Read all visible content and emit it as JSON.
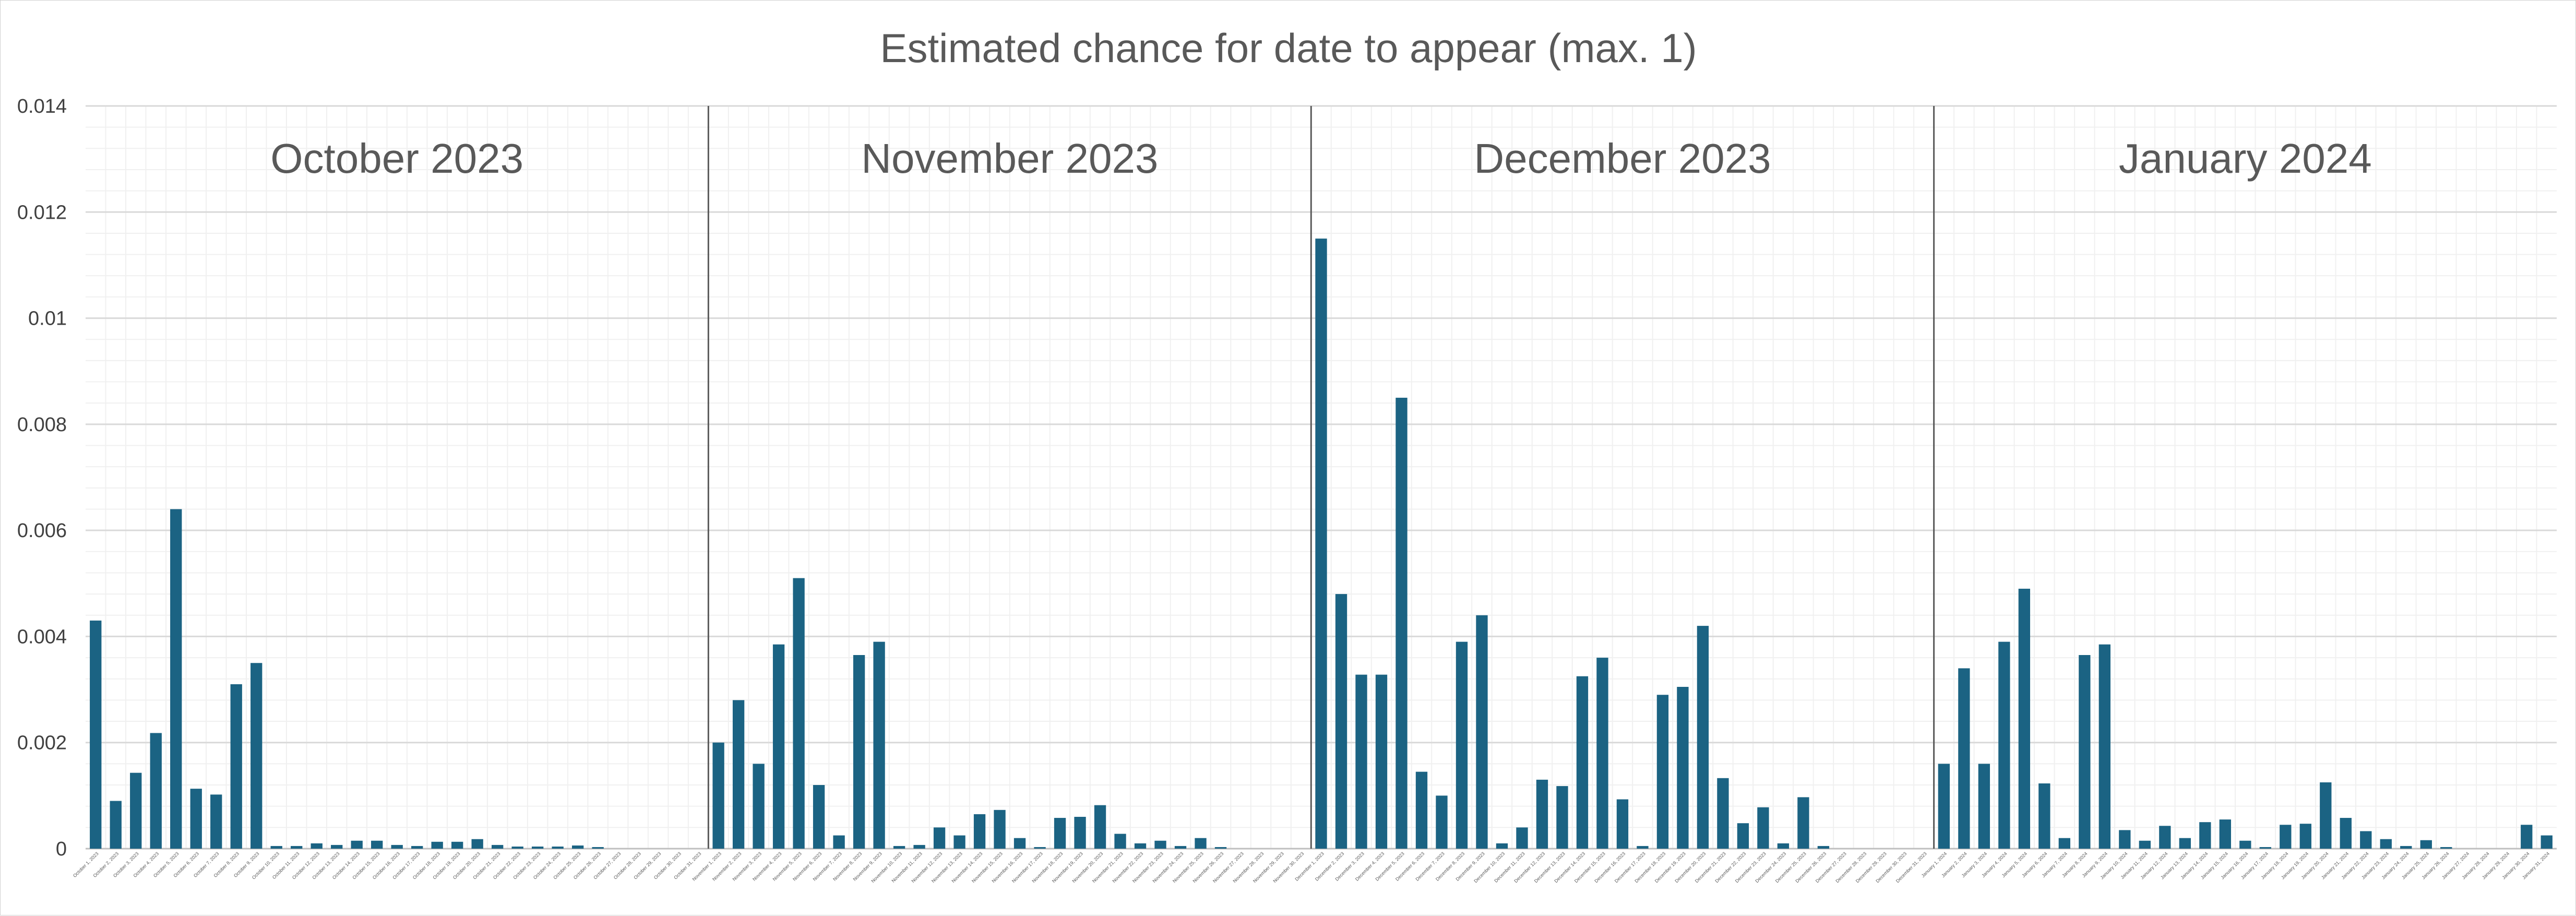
{
  "chart_data": {
    "type": "bar",
    "title": "Estimated chance for date to appear (max. 1)",
    "xlabel": "",
    "ylabel": "",
    "ylim": [
      0,
      0.014
    ],
    "yticks": [
      "0",
      "0.002",
      "0.004",
      "0.006",
      "0.008",
      "0.01",
      "0.012",
      "0.014"
    ],
    "grid": true,
    "legend": "none",
    "bar_color": "#1b6383",
    "months": [
      {
        "label": "October 2023",
        "name": "October",
        "year": "2023",
        "values": [
          0.0043,
          0.0009,
          0.00143,
          0.00218,
          0.0064,
          0.00113,
          0.00102,
          0.0031,
          0.0035,
          5e-05,
          5e-05,
          0.0001,
          7e-05,
          0.00015,
          0.00015,
          7e-05,
          5e-05,
          0.00013,
          0.00013,
          0.00018,
          7e-05,
          4e-05,
          4e-05,
          4e-05,
          6e-05,
          3e-05,
          0,
          0,
          0,
          0,
          0
        ]
      },
      {
        "label": "November 2023",
        "name": "November",
        "year": "2023",
        "values": [
          0.002,
          0.0028,
          0.0016,
          0.00385,
          0.0051,
          0.0012,
          0.00025,
          0.00365,
          0.0039,
          5e-05,
          7e-05,
          0.0004,
          0.00025,
          0.00065,
          0.00073,
          0.0002,
          3e-05,
          0.00058,
          0.0006,
          0.00082,
          0.00028,
          0.0001,
          0.00015,
          5e-05,
          0.0002,
          3e-05,
          0,
          0,
          0,
          0
        ]
      },
      {
        "label": "December 2023",
        "name": "December",
        "year": "2023",
        "values": [
          0.0115,
          0.0048,
          0.00328,
          0.00328,
          0.0085,
          0.00145,
          0.001,
          0.0039,
          0.0044,
          0.0001,
          0.0004,
          0.0013,
          0.00118,
          0.00325,
          0.0036,
          0.00093,
          5e-05,
          0.0029,
          0.00305,
          0.0042,
          0.00133,
          0.00048,
          0.00078,
          0.0001,
          0.00097,
          5e-05,
          0,
          0,
          0,
          0,
          0
        ]
      },
      {
        "label": "January 2024",
        "name": "January",
        "year": "2024",
        "values": [
          0.0016,
          0.0034,
          0.0016,
          0.0039,
          0.0049,
          0.00123,
          0.0002,
          0.00365,
          0.00385,
          0.00035,
          0.00015,
          0.00043,
          0.0002,
          0.0005,
          0.00055,
          0.00015,
          3e-05,
          0.00045,
          0.00047,
          0.00125,
          0.00058,
          0.00033,
          0.00018,
          5e-05,
          0.00016,
          3e-05,
          0,
          0,
          0,
          0.00045,
          0.00025
        ]
      }
    ]
  }
}
